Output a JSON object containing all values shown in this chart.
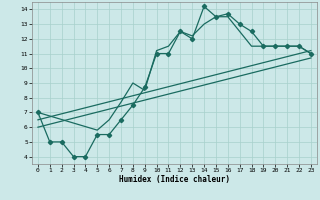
{
  "title": "",
  "xlabel": "Humidex (Indice chaleur)",
  "bg_color": "#cce8e8",
  "line_color": "#1a6b60",
  "xlim": [
    -0.5,
    23.5
  ],
  "ylim": [
    3.5,
    14.5
  ],
  "xticks": [
    0,
    1,
    2,
    3,
    4,
    5,
    6,
    7,
    8,
    9,
    10,
    11,
    12,
    13,
    14,
    15,
    16,
    17,
    18,
    19,
    20,
    21,
    22,
    23
  ],
  "yticks": [
    4,
    5,
    6,
    7,
    8,
    9,
    10,
    11,
    12,
    13,
    14
  ],
  "series": [
    {
      "x": [
        0,
        1,
        2,
        3,
        4,
        5,
        6,
        7,
        8,
        9,
        10,
        11,
        12,
        13,
        14,
        15,
        16,
        17,
        18,
        19,
        20,
        21,
        22,
        23
      ],
      "y": [
        7,
        5,
        5,
        4,
        4,
        5.5,
        5.5,
        6.5,
        7.5,
        8.7,
        11,
        11,
        12.5,
        12,
        14.2,
        13.5,
        13.7,
        13,
        12.5,
        11.5,
        11.5,
        11.5,
        11.5,
        11
      ],
      "marker": true
    },
    {
      "x": [
        0,
        5,
        6,
        7,
        8,
        9,
        10,
        11,
        12,
        13,
        14,
        15,
        16,
        17,
        18,
        19,
        20,
        21,
        22,
        23
      ],
      "y": [
        7,
        5.8,
        6.5,
        7.7,
        9,
        8.5,
        11.2,
        11.5,
        12.5,
        12.2,
        13,
        13.5,
        13.5,
        12.5,
        11.5,
        11.5,
        11.5,
        11.5,
        11.5,
        11
      ],
      "marker": false
    },
    {
      "x": [
        0,
        23
      ],
      "y": [
        6.5,
        11.2
      ],
      "marker": false
    },
    {
      "x": [
        0,
        23
      ],
      "y": [
        6.0,
        10.7
      ],
      "marker": false
    }
  ]
}
